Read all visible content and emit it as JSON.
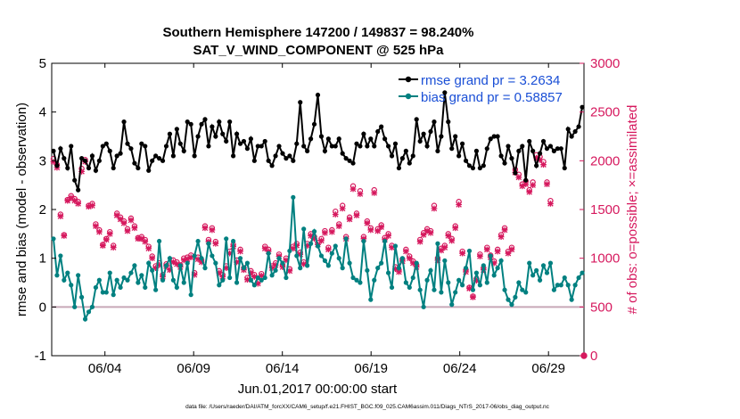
{
  "chart_data": {
    "type": "line",
    "title": "Southern Hemisphere 147200 / 149837 = 98.240%",
    "subtitle": "SAT_V_WIND_COMPONENT @ 525 hPa",
    "xlabel": "Jun.01,2017 00:00:00 start",
    "ylabel_left": "rmse and bias (model - observation)",
    "ylabel_right": "# of obs: o=possible; ×=assimilated",
    "footer": "data file: /Users/raeder/DAI/ATM_forcXX/CAM6_setup/f.e21.FHIST_BGC.f09_025.CAM6assim.011/Diags_NTrS_2017-06/obs_diag_output.nc",
    "x_ticks": [
      "06/04",
      "06/09",
      "06/14",
      "06/19",
      "06/24",
      "06/29"
    ],
    "x_tick_days": [
      4,
      9,
      14,
      19,
      24,
      29
    ],
    "xlim_days": [
      1.0,
      31.0
    ],
    "ylim_left": [
      -1,
      5
    ],
    "y_ticks_left": [
      "-1",
      "0",
      "1",
      "2",
      "3",
      "4",
      "5"
    ],
    "ylim_right": [
      0,
      3000
    ],
    "y_ticks_right": [
      "0",
      "500",
      "1000",
      "1500",
      "2000",
      "2500",
      "3000"
    ],
    "grid": false,
    "legend_position": "top-right",
    "colors": {
      "rmse": "#000000",
      "bias": "#008080",
      "obs": "#d6195e",
      "zero_line": "#c8a8b8"
    },
    "series": [
      {
        "name": "rmse grand pr = 3.2634",
        "values": [
          3.2,
          2.9,
          3.25,
          3.05,
          2.85,
          3.3,
          2.6,
          2.4,
          3.05,
          3.0,
          2.85,
          3.1,
          2.8,
          3.0,
          3.3,
          3.35,
          3.2,
          2.85,
          3.1,
          3.15,
          3.8,
          3.35,
          3.25,
          2.95,
          2.85,
          3.35,
          3.3,
          2.8,
          3.0,
          3.1,
          3.05,
          3.0,
          3.3,
          3.55,
          3.1,
          3.65,
          3.35,
          3.2,
          3.8,
          3.75,
          3.1,
          3.5,
          3.75,
          3.85,
          3.3,
          3.7,
          3.5,
          3.8,
          3.55,
          3.4,
          3.8,
          3.1,
          3.55,
          3.35,
          3.4,
          3.25,
          3.45,
          3.0,
          3.3,
          3.3,
          3.4,
          3.0,
          2.9,
          3.1,
          3.3,
          3.15,
          3.05,
          3.1,
          3.0,
          3.35,
          4.2,
          3.3,
          3.2,
          3.45,
          3.75,
          4.35,
          3.5,
          3.2,
          3.45,
          3.3,
          3.3,
          3.45,
          3.15,
          3.05,
          3.0,
          2.95,
          3.35,
          3.3,
          3.55,
          3.3,
          3.45,
          3.3,
          3.6,
          3.7,
          3.45,
          3.3,
          3.1,
          3.35,
          2.85,
          3.05,
          3.2,
          2.95,
          3.1,
          3.85,
          3.4,
          3.55,
          3.3,
          3.6,
          3.8,
          3.2,
          3.5,
          4.4,
          3.8,
          3.25,
          3.5,
          3.1,
          3.35,
          3.0,
          2.9,
          2.85,
          3.2,
          2.85,
          2.9,
          3.25,
          3.45,
          3.5,
          3.5,
          3.1,
          2.95,
          3.3,
          3.05,
          2.75,
          3.2,
          3.3,
          2.6,
          3.4,
          3.2,
          2.9,
          3.15,
          3.4,
          3.25,
          3.3,
          3.2,
          3.25,
          3.25,
          2.85,
          3.65,
          3.5,
          3.6,
          3.7,
          4.1
        ]
      },
      {
        "name": "bias grand pr = 0.58857",
        "values": [
          1.4,
          0.65,
          1.05,
          0.55,
          0.7,
          0.45,
          0.0,
          0.65,
          0.2,
          -0.25,
          -0.1,
          0.0,
          0.4,
          0.55,
          0.3,
          0.3,
          0.7,
          0.25,
          0.55,
          0.4,
          0.6,
          0.55,
          0.7,
          0.85,
          0.5,
          0.65,
          0.4,
          0.9,
          0.75,
          0.35,
          1.35,
          0.55,
          0.85,
          1.0,
          0.55,
          0.4,
          0.85,
          0.5,
          0.9,
          0.25,
          1.05,
          1.35,
          1.0,
          0.8,
          1.3,
          1.05,
          0.9,
          0.45,
          0.55,
          1.4,
          0.6,
          1.35,
          0.5,
          1.0,
          0.8,
          0.9,
          0.55,
          0.45,
          0.6,
          0.55,
          0.6,
          1.1,
          0.65,
          0.75,
          1.0,
          0.9,
          0.6,
          1.15,
          2.25,
          1.05,
          0.8,
          1.6,
          0.85,
          1.3,
          1.55,
          1.25,
          1.05,
          0.95,
          0.85,
          1.1,
          1.25,
          1.0,
          0.8,
          1.4,
          0.9,
          0.6,
          0.55,
          0.5,
          1.35,
          0.75,
          0.15,
          0.55,
          0.8,
          0.9,
          1.35,
          0.7,
          0.4,
          1.25,
          0.8,
          1.0,
          0.5,
          0.4,
          0.6,
          0.9,
          0.35,
          0.0,
          0.55,
          0.75,
          0.35,
          1.3,
          0.3,
          0.95,
          0.5,
          0.05,
          0.3,
          0.55,
          0.45,
          0.8,
          1.15,
          0.35,
          0.7,
          0.45,
          0.85,
          0.5,
          1.05,
          0.65,
          0.8,
          0.95,
          0.35,
          0.15,
          0.05,
          0.2,
          0.5,
          0.35,
          0.3,
          0.9,
          0.65,
          0.75,
          0.55,
          0.85,
          0.7,
          0.9,
          0.35,
          0.45,
          0.45,
          0.6,
          0.45,
          0.15,
          0.45,
          0.6,
          0.7
        ]
      }
    ],
    "obs_count_series": {
      "name": "# of obs",
      "possible": [
        2020,
        1960,
        1450,
        1240,
        1600,
        1640,
        1610,
        1580,
        1920,
        2010,
        1540,
        1560,
        1350,
        1290,
        1140,
        1200,
        1270,
        1130,
        1460,
        1420,
        1380,
        1300,
        1410,
        1330,
        1210,
        1220,
        1190,
        1120,
        1020,
        920,
        950,
        830,
        940,
        900,
        980,
        960,
        930,
        1000,
        1010,
        1030,
        850,
        1010,
        980,
        1330,
        1190,
        1310,
        1170,
        870,
        830,
        920,
        1070,
        1140,
        980,
        1090,
        900,
        800,
        870,
        830,
        760,
        840,
        1120,
        1090,
        920,
        950,
        1040,
        930,
        1000,
        890,
        1120,
        1150,
        1060,
        960,
        1150,
        1250,
        1220,
        1160,
        1200,
        1280,
        1110,
        1290,
        1480,
        1350,
        1540,
        1220,
        1420,
        1740,
        1460,
        1690,
        1220,
        1380,
        1310,
        1700,
        1300,
        1340,
        1210,
        1250,
        1130,
        910,
        880,
        990,
        1090,
        1020,
        970,
        930,
        1190,
        1260,
        1300,
        1280,
        1540,
        1000,
        1100,
        1130,
        1250,
        1200,
        1330,
        1580,
        1070,
        880,
        700,
        610,
        790,
        1040,
        900,
        1110,
        1030,
        970,
        1090,
        1240,
        1310,
        1070,
        1110,
        1910,
        1860,
        1760,
        1790,
        1700,
        1780,
        2060,
        2040,
        1990,
        1780,
        1590
      ],
      "assimilated": [
        1990,
        1930,
        1430,
        1230,
        1590,
        1620,
        1590,
        1560,
        1890,
        1990,
        1530,
        1540,
        1330,
        1270,
        1130,
        1190,
        1250,
        1110,
        1440,
        1400,
        1360,
        1280,
        1390,
        1310,
        1200,
        1200,
        1170,
        1100,
        1000,
        900,
        930,
        810,
        920,
        880,
        960,
        940,
        910,
        980,
        990,
        1010,
        830,
        990,
        960,
        1310,
        1170,
        1290,
        1150,
        850,
        810,
        900,
        1050,
        1120,
        960,
        1070,
        880,
        780,
        850,
        810,
        740,
        820,
        1100,
        1070,
        900,
        930,
        1020,
        910,
        980,
        870,
        1100,
        1130,
        1040,
        940,
        1130,
        1230,
        1200,
        1140,
        1180,
        1260,
        1090,
        1270,
        1450,
        1330,
        1510,
        1200,
        1400,
        1710,
        1440,
        1660,
        1200,
        1360,
        1290,
        1670,
        1280,
        1320,
        1190,
        1230,
        1110,
        890,
        860,
        970,
        1070,
        1000,
        950,
        910,
        1170,
        1240,
        1280,
        1260,
        1510,
        980,
        1080,
        1110,
        1230,
        1180,
        1310,
        1550,
        1050,
        860,
        690,
        600,
        770,
        1020,
        880,
        1090,
        1010,
        950,
        1070,
        1220,
        1290,
        1050,
        1090,
        1880,
        1830,
        1740,
        1760,
        1680,
        1750,
        2030,
        2010,
        1960,
        1760,
        1560
      ]
    }
  }
}
